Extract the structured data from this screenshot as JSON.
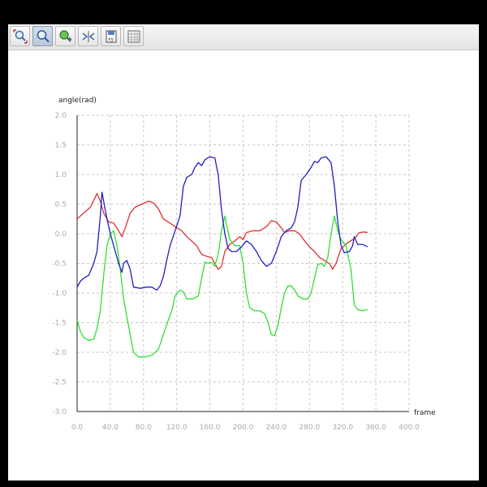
{
  "toolbar": {
    "buttons": [
      {
        "name": "zoom-fit-icon",
        "active": false
      },
      {
        "name": "zoom-icon",
        "active": true
      },
      {
        "name": "pan-icon",
        "active": false
      },
      {
        "name": "scale-axes-icon",
        "active": false
      },
      {
        "name": "save-icon",
        "active": false
      },
      {
        "name": "table-icon",
        "active": false
      }
    ]
  },
  "chart_data": {
    "type": "line",
    "xlabel": "frame",
    "ylabel": "angle(rad)",
    "xlim": [
      0,
      400
    ],
    "ylim": [
      -3,
      2
    ],
    "xticks": [
      "0.0",
      "40.0",
      "80.0",
      "120.0",
      "160.0",
      "200.0",
      "240.0",
      "280.0",
      "320.0",
      "360.0",
      "400.0"
    ],
    "yticks": [
      "2.0",
      "1.5",
      "1.0",
      "0.5",
      "0.0",
      "-0.5",
      "-1.0",
      "-1.5",
      "-2.0",
      "-2.5",
      "-3.0"
    ],
    "grid": true,
    "series": [
      {
        "color": "#e03030",
        "points": [
          [
            0,
            0.25
          ],
          [
            8,
            0.35
          ],
          [
            16,
            0.45
          ],
          [
            22,
            0.62
          ],
          [
            24,
            0.68
          ],
          [
            28,
            0.55
          ],
          [
            32,
            0.35
          ],
          [
            38,
            0.2
          ],
          [
            44,
            0.18
          ],
          [
            48,
            0.1
          ],
          [
            52,
            0.0
          ],
          [
            54,
            -0.05
          ],
          [
            58,
            0.1
          ],
          [
            64,
            0.35
          ],
          [
            70,
            0.45
          ],
          [
            78,
            0.5
          ],
          [
            86,
            0.55
          ],
          [
            92,
            0.52
          ],
          [
            98,
            0.42
          ],
          [
            104,
            0.25
          ],
          [
            112,
            0.18
          ],
          [
            118,
            0.12
          ],
          [
            126,
            0.05
          ],
          [
            132,
            -0.05
          ],
          [
            138,
            -0.12
          ],
          [
            144,
            -0.2
          ],
          [
            150,
            -0.35
          ],
          [
            156,
            -0.38
          ],
          [
            162,
            -0.4
          ],
          [
            166,
            -0.5
          ],
          [
            170,
            -0.6
          ],
          [
            174,
            -0.55
          ],
          [
            178,
            -0.3
          ],
          [
            184,
            -0.18
          ],
          [
            190,
            -0.12
          ],
          [
            196,
            -0.05
          ],
          [
            200,
            -0.1
          ],
          [
            204,
            0.02
          ],
          [
            212,
            0.05
          ],
          [
            220,
            0.05
          ],
          [
            226,
            0.1
          ],
          [
            230,
            0.15
          ],
          [
            234,
            0.22
          ],
          [
            240,
            0.2
          ],
          [
            246,
            0.1
          ],
          [
            250,
            0.02
          ],
          [
            256,
            0.05
          ],
          [
            262,
            0.05
          ],
          [
            268,
            0.0
          ],
          [
            274,
            -0.12
          ],
          [
            280,
            -0.22
          ],
          [
            286,
            -0.3
          ],
          [
            292,
            -0.4
          ],
          [
            298,
            -0.45
          ],
          [
            304,
            -0.5
          ],
          [
            308,
            -0.6
          ],
          [
            312,
            -0.5
          ],
          [
            318,
            -0.25
          ],
          [
            326,
            -0.15
          ],
          [
            332,
            -0.1
          ],
          [
            336,
            -0.05
          ],
          [
            340,
            0.02
          ],
          [
            346,
            0.03
          ],
          [
            350,
            0.02
          ]
        ]
      },
      {
        "color": "#30e030",
        "points": [
          [
            0,
            -1.45
          ],
          [
            4,
            -1.65
          ],
          [
            8,
            -1.75
          ],
          [
            14,
            -1.8
          ],
          [
            20,
            -1.78
          ],
          [
            24,
            -1.6
          ],
          [
            28,
            -1.3
          ],
          [
            32,
            -0.7
          ],
          [
            36,
            -0.2
          ],
          [
            40,
            0.0
          ],
          [
            44,
            0.05
          ],
          [
            48,
            -0.2
          ],
          [
            52,
            -0.6
          ],
          [
            56,
            -1.1
          ],
          [
            60,
            -1.4
          ],
          [
            64,
            -1.7
          ],
          [
            68,
            -2.0
          ],
          [
            74,
            -2.08
          ],
          [
            82,
            -2.08
          ],
          [
            90,
            -2.05
          ],
          [
            98,
            -1.95
          ],
          [
            104,
            -1.7
          ],
          [
            110,
            -1.45
          ],
          [
            114,
            -1.3
          ],
          [
            118,
            -1.05
          ],
          [
            124,
            -0.95
          ],
          [
            128,
            -0.98
          ],
          [
            132,
            -1.1
          ],
          [
            140,
            -1.1
          ],
          [
            146,
            -1.05
          ],
          [
            150,
            -0.75
          ],
          [
            154,
            -0.48
          ],
          [
            158,
            -0.5
          ],
          [
            162,
            -0.48
          ],
          [
            166,
            -0.55
          ],
          [
            170,
            -0.35
          ],
          [
            174,
            0.05
          ],
          [
            178,
            0.3
          ],
          [
            180,
            0.15
          ],
          [
            184,
            -0.1
          ],
          [
            190,
            -0.2
          ],
          [
            196,
            -0.2
          ],
          [
            200,
            -0.5
          ],
          [
            204,
            -1.0
          ],
          [
            208,
            -1.25
          ],
          [
            214,
            -1.3
          ],
          [
            220,
            -1.3
          ],
          [
            226,
            -1.35
          ],
          [
            230,
            -1.5
          ],
          [
            234,
            -1.7
          ],
          [
            238,
            -1.72
          ],
          [
            242,
            -1.55
          ],
          [
            246,
            -1.25
          ],
          [
            250,
            -1.0
          ],
          [
            254,
            -0.88
          ],
          [
            258,
            -0.88
          ],
          [
            262,
            -0.95
          ],
          [
            266,
            -1.05
          ],
          [
            272,
            -1.1
          ],
          [
            278,
            -1.1
          ],
          [
            282,
            -1.0
          ],
          [
            286,
            -0.75
          ],
          [
            290,
            -0.52
          ],
          [
            294,
            -0.5
          ],
          [
            298,
            -0.55
          ],
          [
            302,
            -0.4
          ],
          [
            306,
            0.0
          ],
          [
            310,
            0.3
          ],
          [
            314,
            0.05
          ],
          [
            318,
            -0.1
          ],
          [
            324,
            -0.2
          ],
          [
            330,
            -0.6
          ],
          [
            334,
            -1.2
          ],
          [
            338,
            -1.28
          ],
          [
            344,
            -1.3
          ],
          [
            350,
            -1.28
          ]
        ]
      },
      {
        "color": "#2020c0",
        "points": [
          [
            0,
            -0.9
          ],
          [
            4,
            -0.8
          ],
          [
            8,
            -0.75
          ],
          [
            14,
            -0.7
          ],
          [
            20,
            -0.5
          ],
          [
            24,
            -0.3
          ],
          [
            28,
            0.3
          ],
          [
            30,
            0.7
          ],
          [
            32,
            0.55
          ],
          [
            36,
            0.25
          ],
          [
            40,
            0.0
          ],
          [
            44,
            -0.2
          ],
          [
            50,
            -0.5
          ],
          [
            54,
            -0.65
          ],
          [
            56,
            -0.5
          ],
          [
            60,
            -0.45
          ],
          [
            64,
            -0.6
          ],
          [
            68,
            -0.9
          ],
          [
            76,
            -0.92
          ],
          [
            84,
            -0.9
          ],
          [
            90,
            -0.9
          ],
          [
            96,
            -0.95
          ],
          [
            100,
            -0.88
          ],
          [
            104,
            -0.72
          ],
          [
            108,
            -0.45
          ],
          [
            112,
            -0.2
          ],
          [
            118,
            0.05
          ],
          [
            124,
            0.3
          ],
          [
            128,
            0.8
          ],
          [
            132,
            0.95
          ],
          [
            138,
            1.0
          ],
          [
            142,
            1.12
          ],
          [
            146,
            1.2
          ],
          [
            150,
            1.15
          ],
          [
            154,
            1.25
          ],
          [
            160,
            1.3
          ],
          [
            166,
            1.28
          ],
          [
            170,
            1.0
          ],
          [
            174,
            0.4
          ],
          [
            178,
            0.0
          ],
          [
            182,
            -0.25
          ],
          [
            186,
            -0.3
          ],
          [
            192,
            -0.3
          ],
          [
            198,
            -0.22
          ],
          [
            204,
            -0.12
          ],
          [
            210,
            -0.18
          ],
          [
            216,
            -0.3
          ],
          [
            222,
            -0.45
          ],
          [
            228,
            -0.55
          ],
          [
            234,
            -0.5
          ],
          [
            240,
            -0.3
          ],
          [
            246,
            -0.05
          ],
          [
            252,
            0.05
          ],
          [
            258,
            0.1
          ],
          [
            262,
            0.2
          ],
          [
            266,
            0.45
          ],
          [
            270,
            0.9
          ],
          [
            276,
            1.0
          ],
          [
            282,
            1.12
          ],
          [
            286,
            1.22
          ],
          [
            290,
            1.2
          ],
          [
            294,
            1.28
          ],
          [
            300,
            1.3
          ],
          [
            306,
            1.2
          ],
          [
            310,
            0.8
          ],
          [
            314,
            0.2
          ],
          [
            318,
            -0.2
          ],
          [
            322,
            -0.32
          ],
          [
            328,
            -0.3
          ],
          [
            332,
            -0.2
          ],
          [
            334,
            -0.05
          ],
          [
            338,
            -0.18
          ],
          [
            344,
            -0.18
          ],
          [
            350,
            -0.22
          ]
        ]
      }
    ]
  }
}
